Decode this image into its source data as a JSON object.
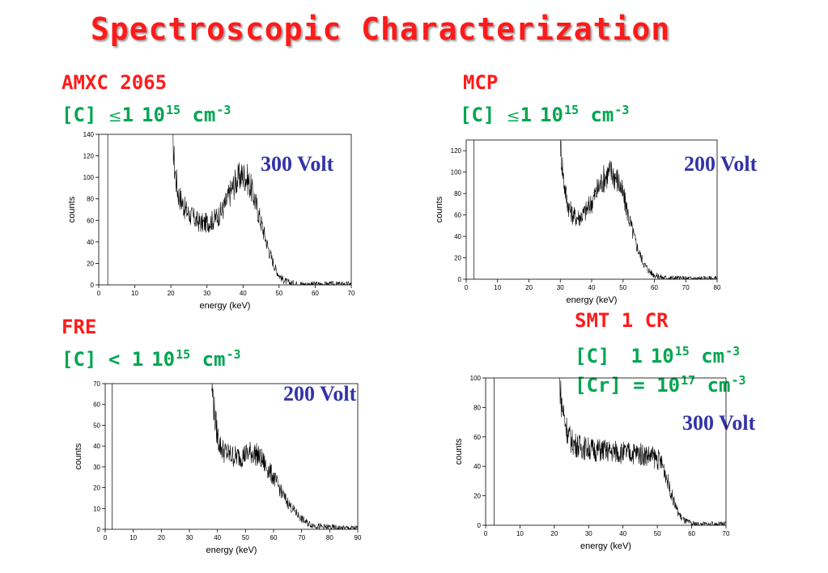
{
  "title": "Spectroscopic Characterization",
  "panels": [
    {
      "name_label": "AMXC 2065",
      "conc_prefix": "[C]",
      "conc_rel": "≤",
      "conc_mant": "1",
      "conc_exp_base": "10",
      "conc_exp": "15",
      "conc_unit": "cm",
      "conc_unit_exp": "-3",
      "voltage": "300 Volt"
    },
    {
      "name_label": "MCP",
      "conc_prefix": "[C]",
      "conc_rel": "≤",
      "conc_mant": "1",
      "conc_exp_base": "10",
      "conc_exp": "15",
      "conc_unit": "cm",
      "conc_unit_exp": "-3",
      "voltage": "200 Volt"
    },
    {
      "name_label": "FRE",
      "conc_prefix": "[C]",
      "conc_rel": "<",
      "conc_mant": "1",
      "conc_exp_base": "10",
      "conc_exp": "15",
      "conc_unit": "cm",
      "conc_unit_exp": "-3",
      "voltage": "200 Volt"
    },
    {
      "name_label": "SMT 1 CR",
      "conc_prefix": "[C]",
      "conc_mant": "1",
      "conc_exp_base": "10",
      "conc_exp": "15",
      "conc_unit": "cm",
      "conc_unit_exp": "-3",
      "conc2_prefix": "[Cr] =",
      "conc2_exp_base": "10",
      "conc2_exp": "17",
      "conc2_unit": "cm",
      "conc2_unit_exp": "-3",
      "voltage": "300 Volt"
    }
  ],
  "colors": {
    "title": "#ff1a1a",
    "sample": "#ff1a1a",
    "concentration": "#00a651",
    "voltage": "#3333a8",
    "trace": "#000000"
  },
  "chart_data": [
    {
      "type": "line",
      "xlabel": "energy (keV)",
      "ylabel": "counts",
      "xlim": [
        0,
        70
      ],
      "ylim": [
        0,
        140
      ],
      "xticks": [
        0,
        10,
        20,
        30,
        40,
        50,
        60,
        70
      ],
      "yticks": [
        0,
        20,
        40,
        60,
        80,
        100,
        120,
        140
      ],
      "spike_x": 2.5,
      "series": [
        {
          "x": [
            20.5,
            21,
            22,
            23,
            24,
            25,
            26,
            27,
            28,
            29,
            30,
            31,
            32,
            33,
            34,
            35,
            36,
            37,
            38,
            39,
            40,
            41,
            42,
            43,
            44,
            45,
            46,
            47,
            48,
            49,
            50,
            51,
            52,
            53,
            54,
            55,
            56,
            57,
            58,
            60,
            62,
            65,
            70
          ],
          "y": [
            138,
            110,
            85,
            78,
            70,
            66,
            63,
            60,
            58,
            57,
            58,
            59,
            61,
            64,
            68,
            74,
            82,
            90,
            96,
            100,
            102,
            100,
            92,
            82,
            70,
            58,
            46,
            34,
            24,
            15,
            9,
            5,
            3,
            2,
            1.5,
            1,
            1,
            0.5,
            0.5,
            0.5,
            0.5,
            0.5,
            0.5
          ]
        }
      ]
    },
    {
      "type": "line",
      "xlabel": "energy (keV)",
      "ylabel": "counts",
      "xlim": [
        0,
        80
      ],
      "ylim": [
        0,
        130
      ],
      "xticks": [
        0,
        10,
        20,
        30,
        40,
        50,
        60,
        70,
        80
      ],
      "yticks": [
        0,
        20,
        40,
        60,
        80,
        100,
        120
      ],
      "spike_x": 2.5,
      "series": [
        {
          "x": [
            30,
            31,
            32,
            33,
            34,
            35,
            36,
            37,
            38,
            39,
            40,
            41,
            42,
            43,
            44,
            45,
            46,
            47,
            48,
            49,
            50,
            51,
            52,
            53,
            54,
            55,
            56,
            57,
            58,
            59,
            60,
            62,
            64,
            66,
            70,
            75,
            80
          ],
          "y": [
            128,
            95,
            75,
            65,
            60,
            58,
            58,
            60,
            63,
            67,
            72,
            78,
            84,
            90,
            95,
            98,
            100,
            98,
            94,
            88,
            78,
            68,
            56,
            45,
            35,
            26,
            19,
            13,
            9,
            6,
            4,
            2,
            1,
            1,
            0.5,
            0.5,
            0.5
          ]
        }
      ]
    },
    {
      "type": "line",
      "xlabel": "energy (keV)",
      "ylabel": "counts",
      "xlim": [
        0,
        90
      ],
      "ylim": [
        0,
        70
      ],
      "xticks": [
        0,
        10,
        20,
        30,
        40,
        50,
        60,
        70,
        80,
        90
      ],
      "yticks": [
        0,
        10,
        20,
        30,
        40,
        50,
        60,
        70
      ],
      "spike_x": 2.5,
      "series": [
        {
          "x": [
            38,
            39,
            40,
            41,
            42,
            44,
            46,
            48,
            50,
            52,
            54,
            56,
            58,
            60,
            62,
            64,
            66,
            68,
            70,
            72,
            74,
            76,
            78,
            80,
            84,
            88,
            90
          ],
          "y": [
            69,
            55,
            45,
            40,
            38,
            36,
            35,
            35,
            36,
            37,
            36,
            33,
            29,
            25,
            20,
            15,
            11,
            8,
            5,
            3,
            2,
            1.5,
            1,
            1,
            0.5,
            0.5,
            0.5
          ]
        }
      ]
    },
    {
      "type": "line",
      "xlabel": "energy (keV)",
      "ylabel": "counts",
      "xlim": [
        0,
        70
      ],
      "ylim": [
        0,
        100
      ],
      "xticks": [
        0,
        10,
        20,
        30,
        40,
        50,
        60,
        70
      ],
      "yticks": [
        0,
        20,
        40,
        60,
        80,
        100
      ],
      "spike_x": 2.5,
      "series": [
        {
          "x": [
            21.5,
            22,
            23,
            24,
            25,
            26,
            27,
            28,
            30,
            32,
            34,
            36,
            38,
            40,
            42,
            44,
            46,
            48,
            50,
            51,
            52,
            53,
            54,
            55,
            56,
            57,
            58,
            59,
            60,
            62,
            64,
            66,
            70
          ],
          "y": [
            100,
            85,
            72,
            62,
            57,
            55,
            54,
            53,
            52,
            51,
            51,
            50,
            50,
            49,
            49,
            49,
            48,
            47,
            45,
            43,
            38,
            30,
            22,
            15,
            9,
            5,
            3,
            2,
            1,
            0.5,
            0.5,
            0.5,
            0.5
          ]
        }
      ]
    }
  ]
}
